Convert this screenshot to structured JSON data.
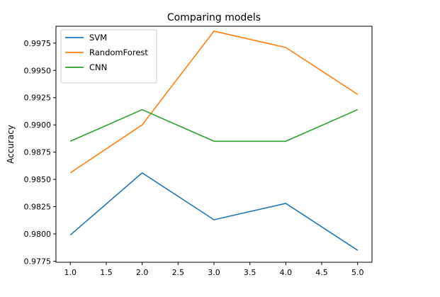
{
  "chart_data": {
    "type": "line",
    "title": "Comparing models",
    "xlabel": "",
    "ylabel": "Accuracy",
    "x": [
      1.0,
      2.0,
      3.0,
      4.0,
      5.0
    ],
    "xlim": [
      0.8,
      5.2
    ],
    "ylim": [
      0.9774,
      0.99905
    ],
    "xticks": [
      "1.0",
      "1.5",
      "2.0",
      "2.5",
      "3.0",
      "3.5",
      "4.0",
      "4.5",
      "5.0"
    ],
    "yticks": [
      "0.9775",
      "0.9800",
      "0.9825",
      "0.9850",
      "0.9875",
      "0.9900",
      "0.9925",
      "0.9950",
      "0.9975"
    ],
    "grid": false,
    "legend": "top-left",
    "series": [
      {
        "name": "SVM",
        "color": "#1f77b4",
        "values": [
          0.9799,
          0.9856,
          0.9813,
          0.9828,
          0.9785
        ]
      },
      {
        "name": "RandomForest",
        "color": "#ff7f0e",
        "values": [
          0.9856,
          0.99,
          0.9986,
          0.9971,
          0.9928
        ]
      },
      {
        "name": "CNN",
        "color": "#2ca02c",
        "values": [
          0.9885,
          0.9914,
          0.9885,
          0.9885,
          0.9914
        ]
      }
    ]
  }
}
